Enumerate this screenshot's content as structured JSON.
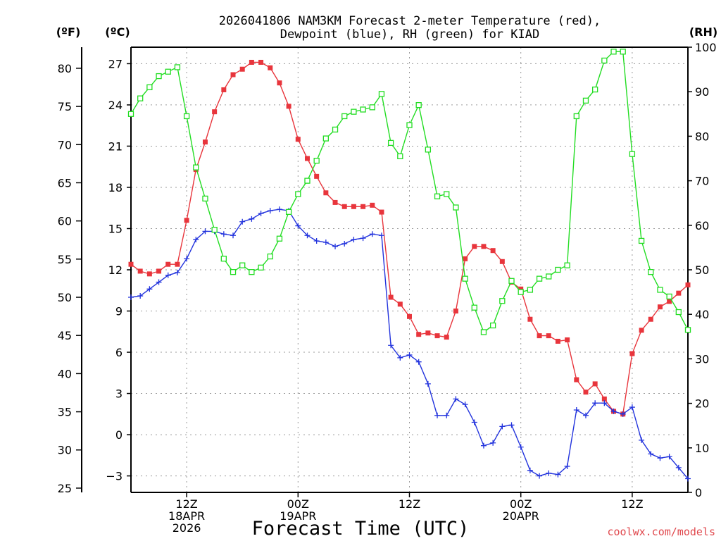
{
  "title_line1": "2026041806 NAM3KM Forecast 2-meter Temperature (red),",
  "title_line2": "Dewpoint (blue), RH (green) for KIAD",
  "unit_f": "(ºF)",
  "unit_c": "(ºC)",
  "unit_rh": "(RH)",
  "xlabel": "Forecast Time (UTC)",
  "credit": "coolwx.com/models",
  "colors": {
    "temperature": "#e8353c",
    "dewpoint": "#2233dd",
    "rh": "#22dd22"
  },
  "chart_data": {
    "type": "line",
    "x_unit": "forecast hour",
    "xlim": [
      0,
      60
    ],
    "ylim_celsius": [
      -4.2,
      28.2
    ],
    "ylim_fahrenheit": [
      24.44,
      82.76
    ],
    "ylim_rh": [
      0,
      100
    ],
    "grid": true,
    "x_ticks": [
      {
        "hour": 6,
        "lines": [
          "12Z",
          "18APR",
          "2026"
        ]
      },
      {
        "hour": 18,
        "lines": [
          "00Z",
          "19APR"
        ]
      },
      {
        "hour": 30,
        "lines": [
          "12Z"
        ]
      },
      {
        "hour": 42,
        "lines": [
          "00Z",
          "20APR"
        ]
      },
      {
        "hour": 54,
        "lines": [
          "12Z"
        ]
      }
    ],
    "y_ticks_celsius": [
      "27",
      "24",
      "21",
      "18",
      "15",
      "12",
      "9",
      "6",
      "3",
      "0",
      "−3"
    ],
    "y_ticks_fahrenheit": [
      "80",
      "75",
      "70",
      "65",
      "60",
      "55",
      "50",
      "45",
      "40",
      "35",
      "30",
      "25"
    ],
    "y_ticks_rh": [
      "100",
      "90",
      "80",
      "70",
      "60",
      "50",
      "40",
      "30",
      "20",
      "10",
      "0"
    ],
    "series": [
      {
        "name": "Temperature",
        "axis": "celsius",
        "marker": "filled-square",
        "values": [
          12.4,
          11.9,
          11.7,
          11.9,
          12.4,
          12.4,
          15.6,
          19.3,
          21.3,
          23.5,
          25.1,
          26.2,
          26.6,
          27.1,
          27.1,
          26.7,
          25.6,
          23.9,
          21.5,
          20.1,
          18.8,
          17.6,
          16.9,
          16.6,
          16.6,
          16.6,
          16.7,
          16.2,
          10.0,
          9.5,
          8.6,
          7.3,
          7.4,
          7.2,
          7.1,
          9.0,
          12.8,
          13.7,
          13.7,
          13.4,
          12.6,
          11.1,
          10.6,
          8.4,
          7.2,
          7.2,
          6.8,
          6.9,
          4.0,
          3.1,
          3.7,
          2.6,
          1.7,
          1.5,
          5.9,
          7.6,
          8.4,
          9.3,
          9.7,
          10.3,
          10.9
        ]
      },
      {
        "name": "Dewpoint",
        "axis": "celsius",
        "marker": "plus",
        "values": [
          10.0,
          10.1,
          10.6,
          11.1,
          11.6,
          11.8,
          12.8,
          14.2,
          14.8,
          14.8,
          14.6,
          14.5,
          15.5,
          15.7,
          16.1,
          16.3,
          16.4,
          16.3,
          15.2,
          14.5,
          14.1,
          14.0,
          13.7,
          13.9,
          14.2,
          14.3,
          14.6,
          14.5,
          6.5,
          5.6,
          5.8,
          5.3,
          3.7,
          1.4,
          1.4,
          2.6,
          2.2,
          0.9,
          -0.8,
          -0.6,
          0.6,
          0.7,
          -0.9,
          -2.6,
          -3.0,
          -2.8,
          -2.9,
          -2.3,
          1.8,
          1.4,
          2.3,
          2.3,
          1.7,
          1.5,
          2.0,
          -0.4,
          -1.4,
          -1.7,
          -1.6,
          -2.4,
          -3.2
        ]
      },
      {
        "name": "RH",
        "axis": "rh",
        "marker": "open-square",
        "values": [
          85,
          88.5,
          91,
          93.5,
          94.5,
          95.5,
          84.5,
          73,
          66,
          59,
          52.5,
          49.5,
          51,
          49.5,
          50.5,
          53,
          57,
          63,
          67,
          70,
          74.5,
          79.5,
          81.5,
          84.5,
          85.5,
          86,
          86.5,
          89.5,
          78.5,
          75.5,
          82.5,
          87,
          77,
          66.5,
          67,
          64,
          48,
          41.5,
          36,
          37.5,
          43,
          47.5,
          45,
          45.5,
          48,
          48.5,
          50,
          51,
          84.5,
          88,
          90.5,
          97,
          99,
          99,
          76,
          56.5,
          49.5,
          45.5,
          44,
          40.5,
          36.5
        ]
      }
    ]
  }
}
